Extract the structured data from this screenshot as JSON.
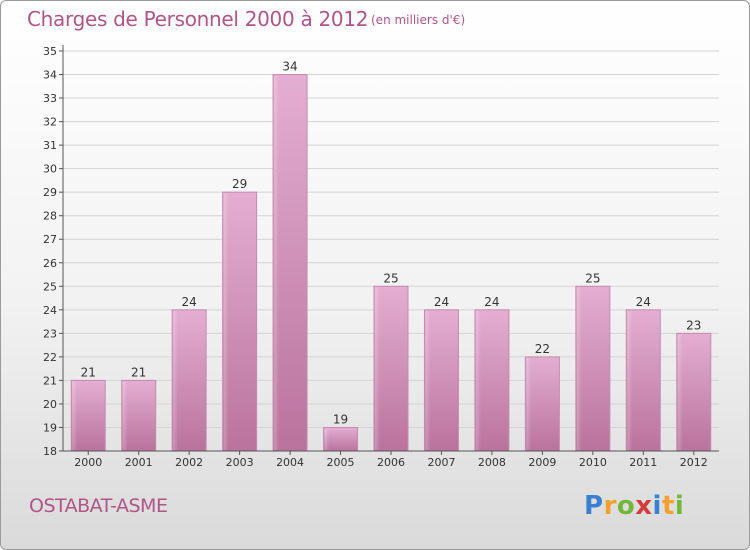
{
  "chart_data": {
    "type": "bar",
    "title": "Charges de Personnel 2000 à 2012",
    "subtitle": "(en milliers d'€)",
    "categories": [
      "2000",
      "2001",
      "2002",
      "2003",
      "2004",
      "2005",
      "2006",
      "2007",
      "2008",
      "2009",
      "2010",
      "2011",
      "2012"
    ],
    "values": [
      21,
      21,
      24,
      29,
      34,
      19,
      25,
      24,
      24,
      22,
      25,
      24,
      23
    ],
    "ylim": [
      18,
      35
    ],
    "yticks": [
      18,
      19,
      20,
      21,
      22,
      23,
      24,
      25,
      26,
      27,
      28,
      29,
      30,
      31,
      32,
      33,
      34,
      35
    ],
    "grid": true,
    "bar_color": "#d9a0c4"
  },
  "place_name": "OSTABAT-ASME",
  "logo": {
    "letters": [
      "P",
      "r",
      "o",
      "x",
      "i",
      "t",
      "i"
    ],
    "colors": [
      "#3a7fd0",
      "#f2a12e",
      "#74b83a",
      "#d43c3c",
      "#3a7fd0",
      "#f2a12e",
      "#74b83a"
    ]
  }
}
